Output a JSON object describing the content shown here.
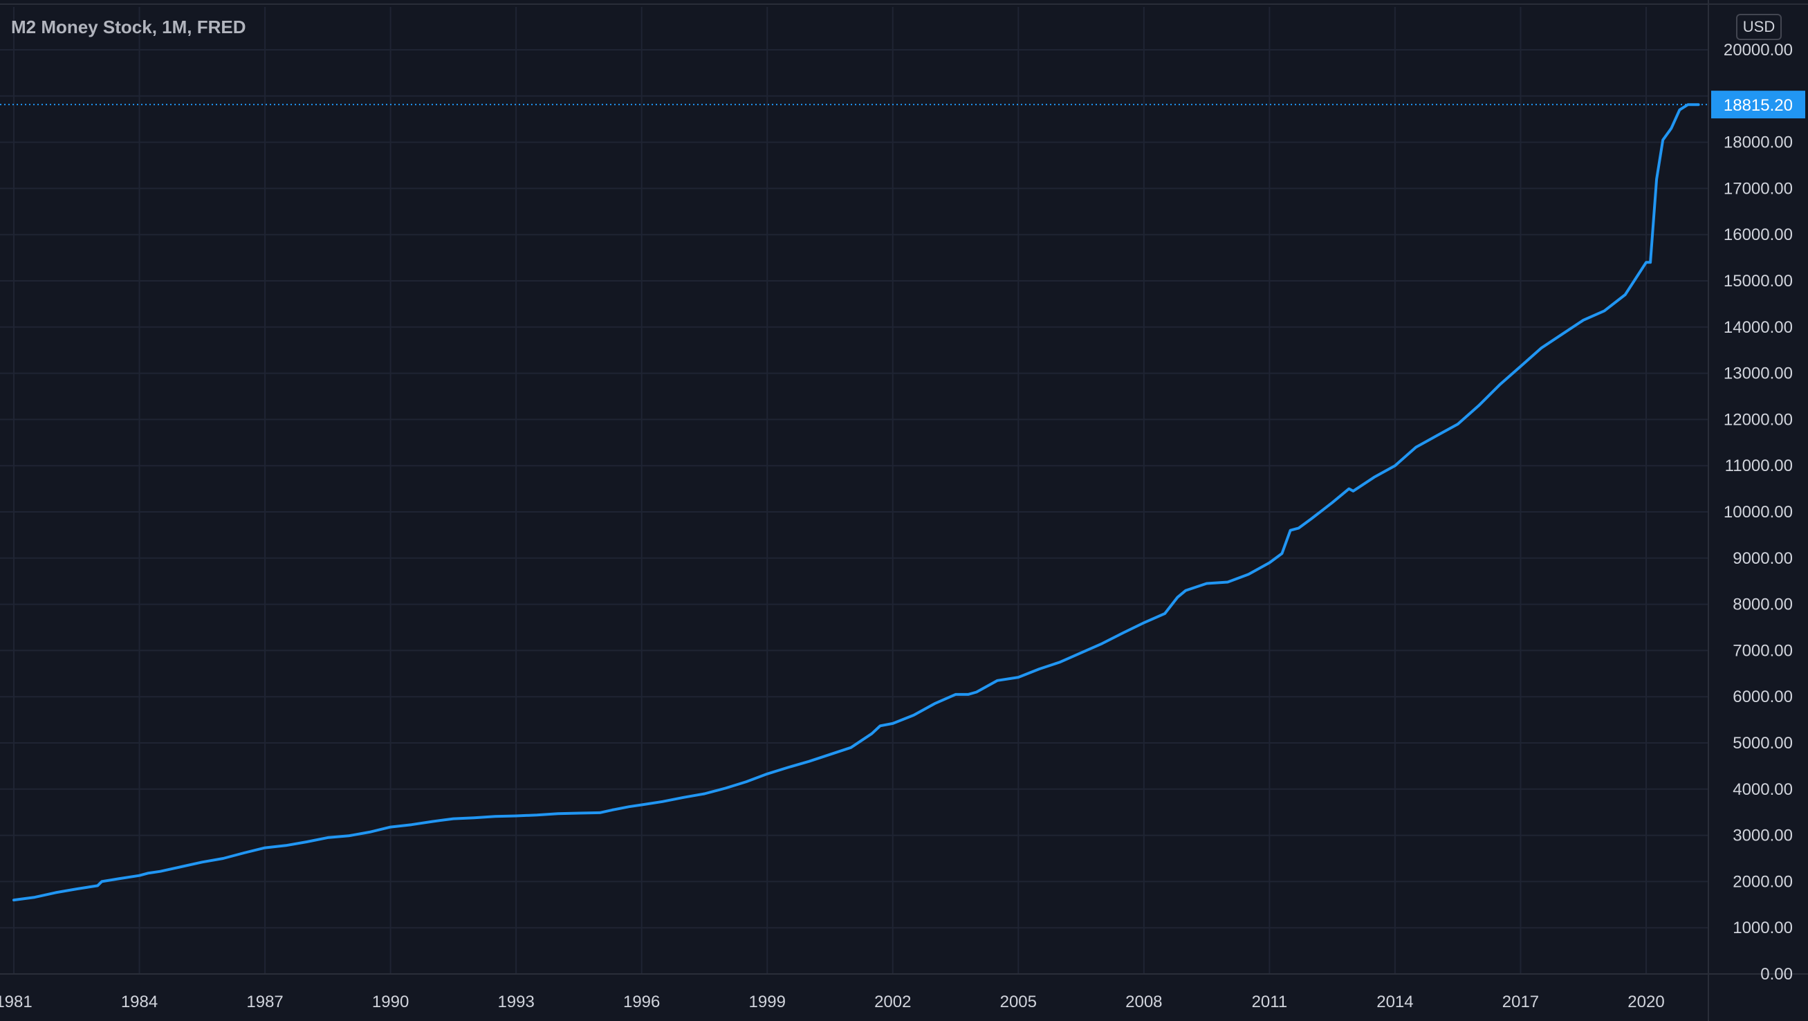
{
  "header": {
    "title": "M2 Money Stock, 1M, FRED",
    "currency": "USD"
  },
  "colors": {
    "background": "#131722",
    "grid": "#1f2433",
    "line": "#2196f3",
    "axis_text": "#d1d4dc",
    "price_label_bg": "#2196f3"
  },
  "chart_data": {
    "type": "line",
    "title": "M2 Money Stock, 1M, FRED",
    "xlabel": "",
    "ylabel": "",
    "unit": "USD",
    "grid": true,
    "ylim": [
      0,
      20000
    ],
    "xlim": [
      1980.9,
      2022.0
    ],
    "y_ticks": [
      "0.00",
      "1000.00",
      "2000.00",
      "3000.00",
      "4000.00",
      "5000.00",
      "6000.00",
      "7000.00",
      "8000.00",
      "9000.00",
      "10000.00",
      "11000.00",
      "12000.00",
      "13000.00",
      "14000.00",
      "15000.00",
      "16000.00",
      "17000.00",
      "18000.00",
      "20000.00"
    ],
    "x_ticks": [
      "1981",
      "1984",
      "1987",
      "1990",
      "1993",
      "1996",
      "1999",
      "2002",
      "2005",
      "2008",
      "2011",
      "2014",
      "2017",
      "2020"
    ],
    "last_value_label": "18815.20",
    "series": [
      {
        "x": [
          1981.0,
          1981.5,
          1982.0,
          1982.5,
          1983.0,
          1983.1,
          1983.5,
          1984.0,
          1984.2,
          1984.5,
          1985.0,
          1985.5,
          1986.0,
          1986.5,
          1987.0,
          1987.5,
          1988.0,
          1988.5,
          1989.0,
          1989.5,
          1990.0,
          1990.5,
          1991.0,
          1991.5,
          1992.0,
          1992.5,
          1993.0,
          1993.5,
          1994.0,
          1994.5,
          1995.0,
          1995.3,
          1995.7,
          1996.0,
          1996.5,
          1997.0,
          1997.5,
          1998.0,
          1998.5,
          1999.0,
          1999.5,
          2000.0,
          2000.5,
          2001.0,
          2001.5,
          2001.7,
          2002.0,
          2002.5,
          2003.0,
          2003.5,
          2003.8,
          2004.0,
          2004.5,
          2005.0,
          2005.5,
          2006.0,
          2006.5,
          2007.0,
          2007.5,
          2008.0,
          2008.5,
          2008.8,
          2009.0,
          2009.5,
          2010.0,
          2010.5,
          2011.0,
          2011.3,
          2011.5,
          2011.7,
          2012.0,
          2012.5,
          2012.9,
          2013.0,
          2013.5,
          2014.0,
          2014.5,
          2015.0,
          2015.5,
          2016.0,
          2016.5,
          2017.0,
          2017.5,
          2018.0,
          2018.5,
          2019.0,
          2019.5,
          2020.0,
          2020.1,
          2020.25,
          2020.4,
          2020.6,
          2020.8,
          2021.0,
          2021.25
        ],
        "values": [
          1600,
          1660,
          1760,
          1840,
          1910,
          2000,
          2060,
          2130,
          2180,
          2220,
          2320,
          2420,
          2500,
          2620,
          2730,
          2780,
          2860,
          2950,
          2990,
          3070,
          3180,
          3230,
          3300,
          3360,
          3380,
          3410,
          3420,
          3440,
          3470,
          3480,
          3490,
          3550,
          3620,
          3660,
          3730,
          3820,
          3900,
          4020,
          4160,
          4330,
          4470,
          4600,
          4750,
          4900,
          5200,
          5370,
          5420,
          5600,
          5850,
          6050,
          6050,
          6100,
          6350,
          6420,
          6600,
          6750,
          6950,
          7150,
          7380,
          7600,
          7800,
          8150,
          8300,
          8450,
          8480,
          8650,
          8900,
          9100,
          9600,
          9650,
          9850,
          10200,
          10500,
          10450,
          10750,
          11000,
          11400,
          11650,
          11900,
          12300,
          12750,
          13150,
          13550,
          13850,
          14150,
          14350,
          14700,
          15400,
          15400,
          17200,
          18050,
          18300,
          18700,
          18815,
          18815
        ]
      }
    ]
  }
}
